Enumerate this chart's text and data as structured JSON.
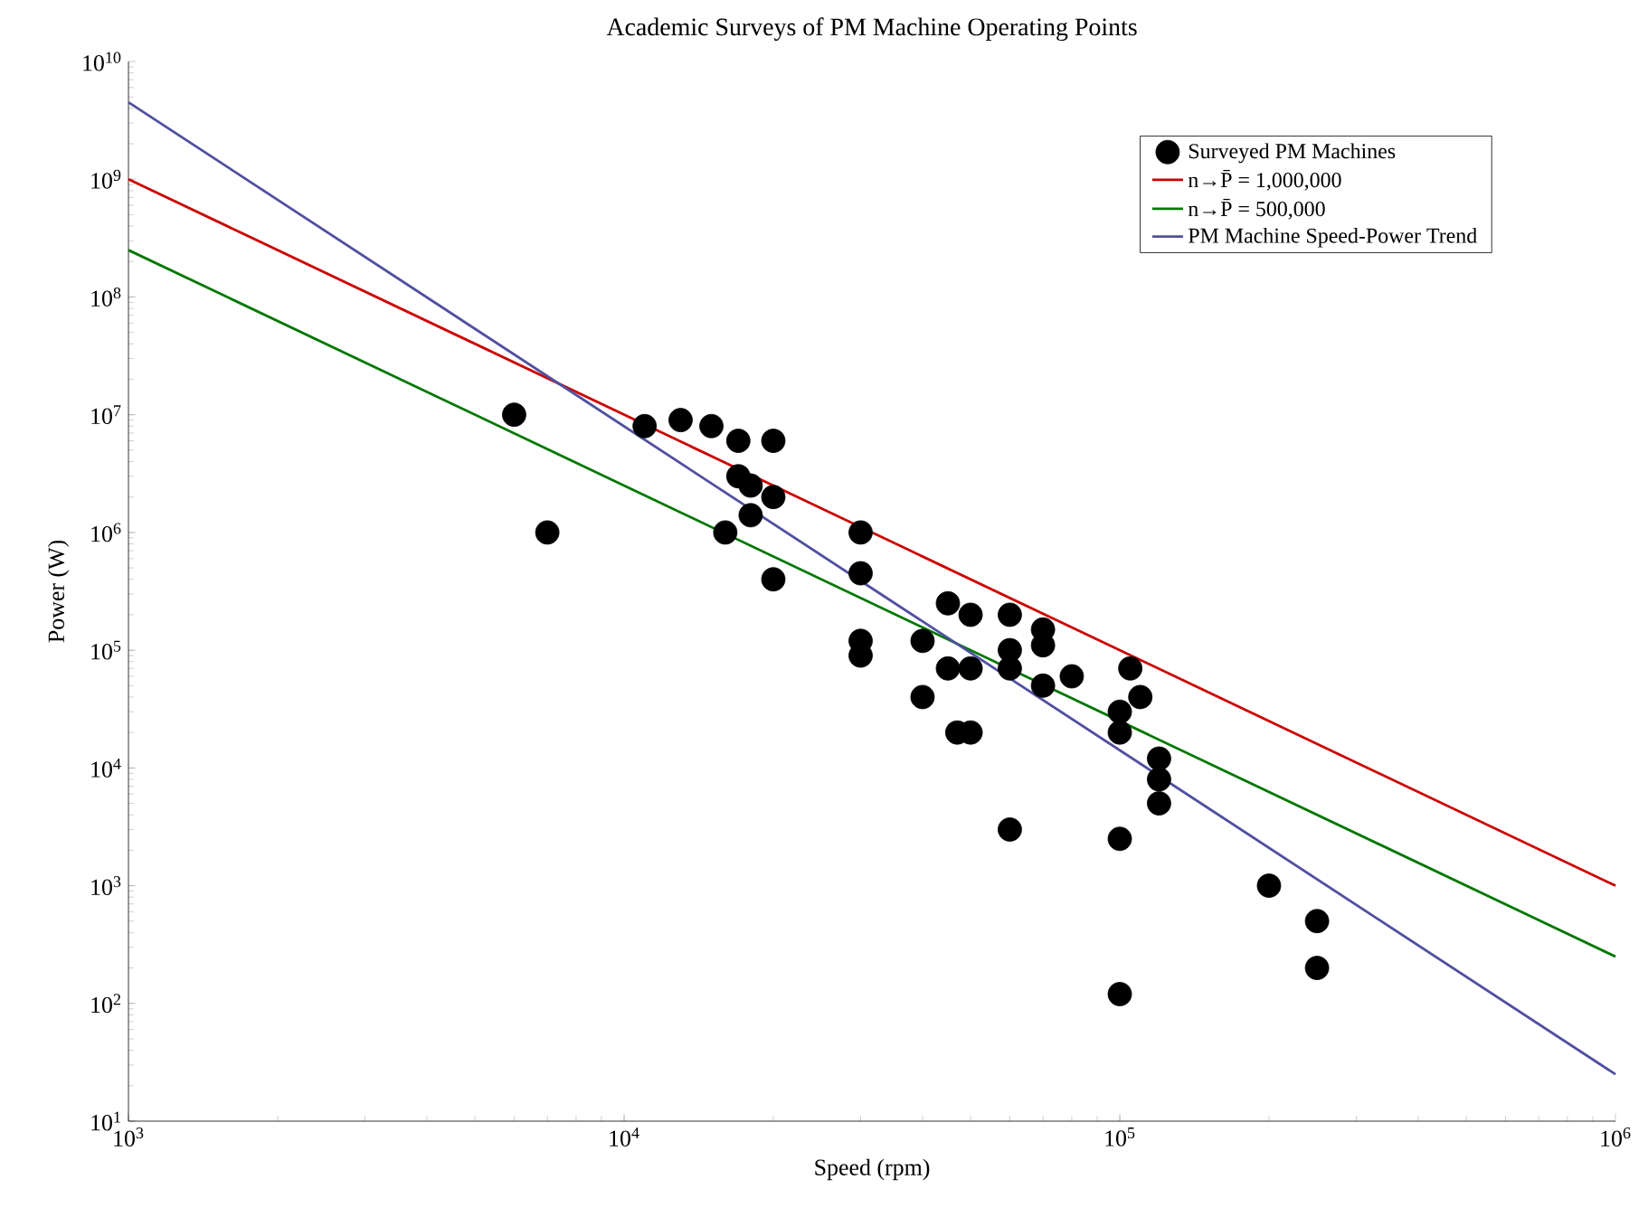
{
  "chart_data": {
    "type": "scatter",
    "title": "Academic Surveys of PM Machine Operating Points",
    "xlabel": "Speed (rpm)",
    "ylabel": "Power (W)",
    "log": "xy",
    "grid": false,
    "legend": "top right",
    "marker": "circle",
    "xlim": [
      1000,
      1000000
    ],
    "xticks": [
      {
        "value": 1000,
        "label": "10$^{3}$"
      },
      {
        "value": 10000,
        "label": "10$^{4}$"
      },
      {
        "value": 100000,
        "label": "10$^{5}$"
      },
      {
        "value": 1000000,
        "label": "10$^{6}$"
      }
    ],
    "ylim": [
      10,
      10000000000
    ],
    "yticks": [
      {
        "value": 10,
        "label": "10$^{1}$"
      },
      {
        "value": 100,
        "label": "10$^{2}$"
      },
      {
        "value": 1000,
        "label": "10$^{3}$"
      },
      {
        "value": 10000,
        "label": "10$^{4}$"
      },
      {
        "value": 100000,
        "label": "10$^{5}$"
      },
      {
        "value": 1000000,
        "label": "10$^{6}$"
      },
      {
        "value": 10000000,
        "label": "10$^{7}$"
      },
      {
        "value": 100000000,
        "label": "10$^{8}$"
      },
      {
        "value": 1000000000,
        "label": "10$^{9}$"
      },
      {
        "value": 10000000000,
        "label": "10$^{10}$"
      }
    ],
    "series": [
      {
        "name": "Surveyed PM Machines",
        "color": "#000000",
        "x": [
          6000,
          7000,
          11000,
          13000,
          15000,
          17000,
          20000,
          17000,
          18000,
          20000,
          18000,
          16000,
          20000,
          30000,
          30000,
          30000,
          30000,
          45000,
          50000,
          40000,
          60000,
          70000,
          70000,
          60000,
          45000,
          50000,
          60000,
          70000,
          80000,
          40000,
          47000,
          50000,
          60000,
          105000,
          110000,
          100000,
          100000,
          120000,
          120000,
          120000,
          100000,
          200000,
          250000,
          250000,
          100000
        ],
        "values": [
          10000000,
          1000000,
          8000000,
          9000000,
          8000000,
          6000000,
          6000000,
          3000000,
          2500000,
          2000000,
          1400000,
          1000000,
          400000,
          1000000,
          450000,
          120000,
          90000,
          250000,
          200000,
          120000,
          200000,
          150000,
          110000,
          100000,
          70000,
          70000,
          70000,
          50000,
          60000,
          40000,
          20000,
          20000,
          3000,
          70000,
          40000,
          30000,
          20000,
          12000,
          8000,
          5000,
          2500,
          1000,
          500,
          200,
          120
        ]
      },
      {
        "name": "n→P̄ = 1,000,000",
        "type": "line",
        "marker": "none",
        "line_style": "solid",
        "color": "#cc0000",
        "x": [
          1000,
          1000000
        ],
        "values": [
          1000000000,
          1000
        ]
      },
      {
        "name": "n→P̄ = 500,000",
        "type": "line",
        "marker": "none",
        "line_style": "solid",
        "color": "#007700",
        "x": [
          1000,
          1000000
        ],
        "values": [
          250000000,
          250
        ]
      },
      {
        "name": "PM Machine Speed-Power Trend",
        "type": "line",
        "marker": "none",
        "line_style": "solid",
        "color": "#5050a0",
        "x": [
          1000,
          1000000
        ],
        "values": [
          4500000000,
          25
        ]
      }
    ]
  }
}
